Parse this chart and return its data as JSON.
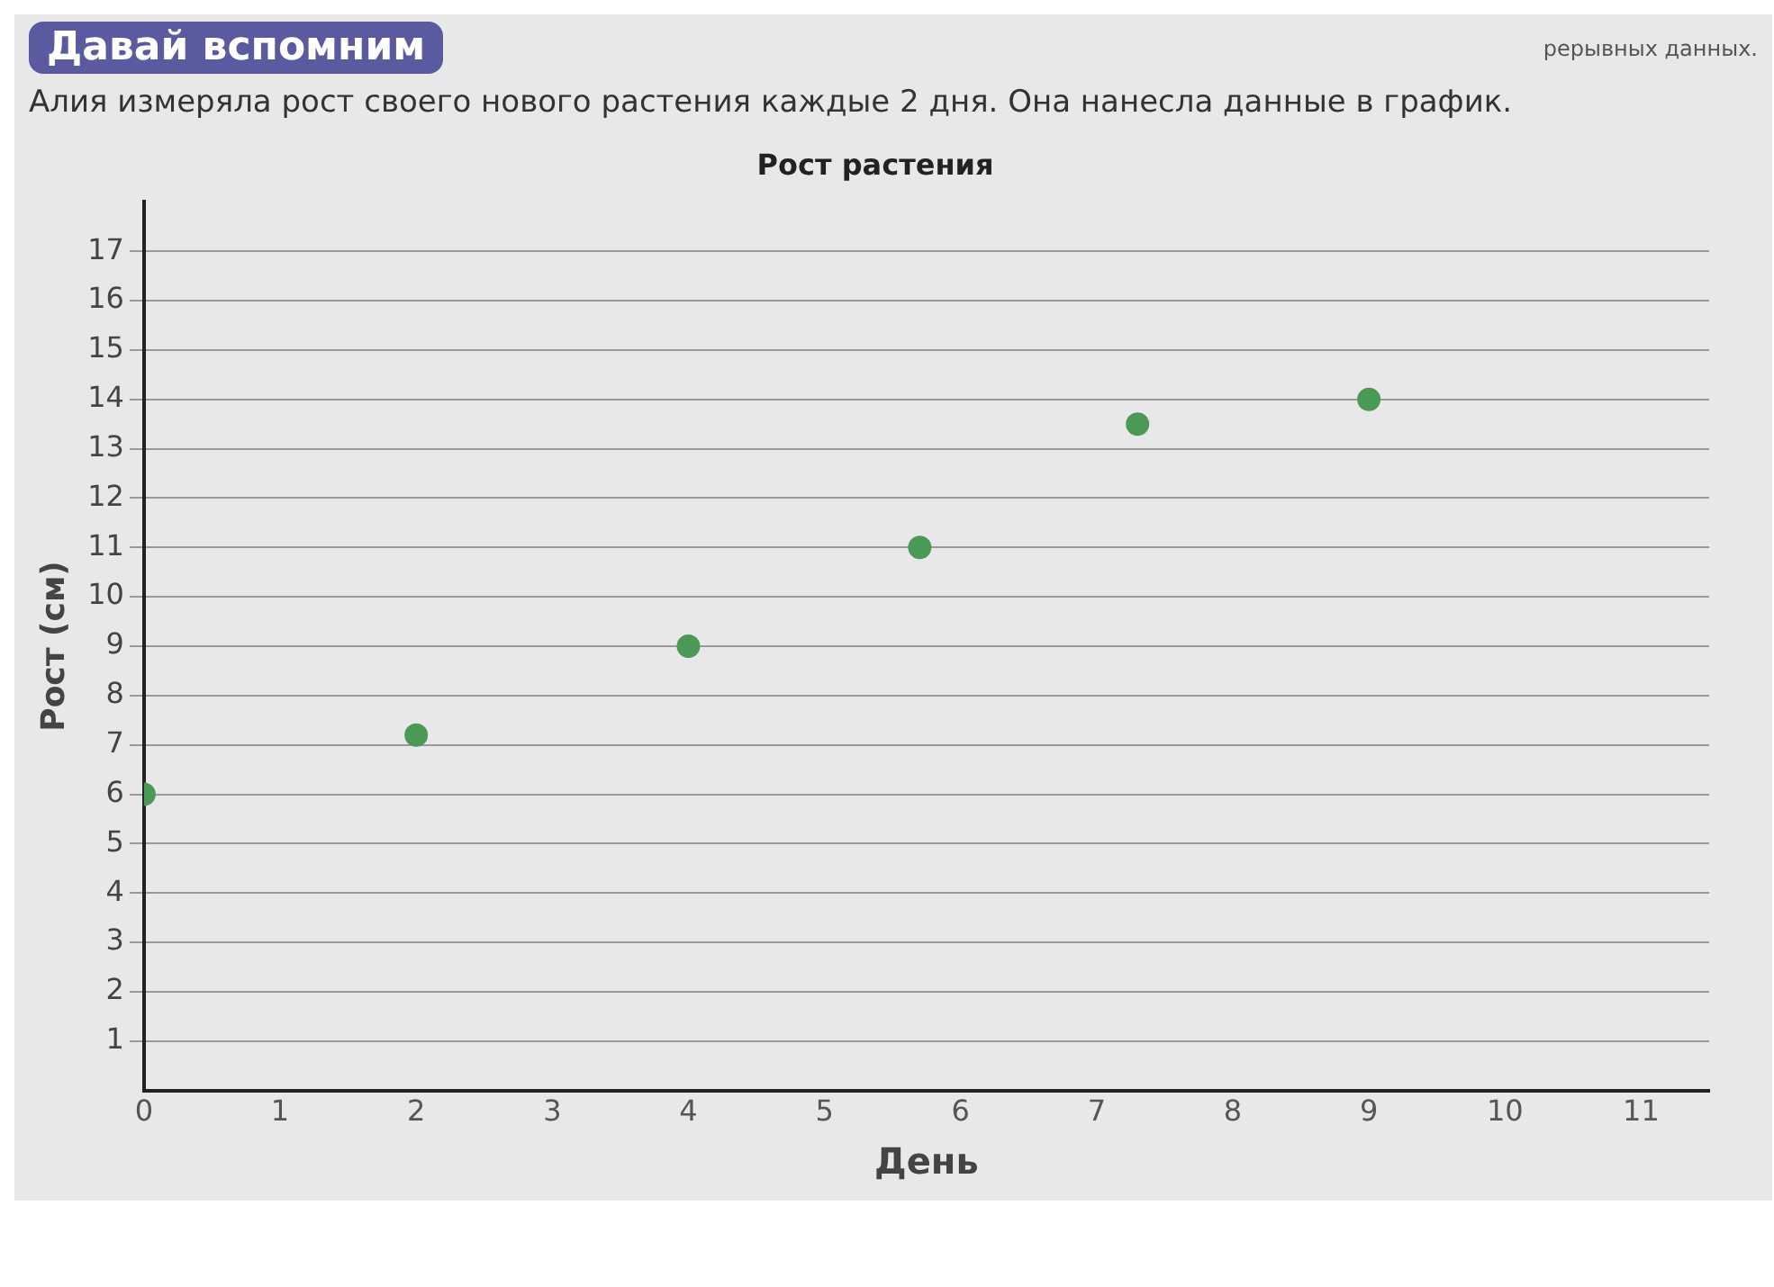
{
  "chart_data": {
    "type": "scatter",
    "title": "Рост растения",
    "xlabel": "День",
    "ylabel": "Рост (см)",
    "annotations": [
      "Давай вспомним",
      "Алия измеряла рост своего нового растения каждые 2 дня. Она нанесла данные в график.",
      "рерывных данных."
    ],
    "x": [
      0,
      2,
      4,
      5.7,
      7.3,
      9
    ],
    "series": [
      {
        "color": "#4a9a55",
        "values": [
          6,
          7.2,
          9,
          11,
          13.5,
          14
        ]
      }
    ],
    "xlim": [
      0,
      11.5
    ],
    "xticks": [
      0,
      1,
      2,
      3,
      4,
      5,
      6,
      7,
      8,
      9,
      10,
      11
    ],
    "ylim": [
      0,
      18
    ],
    "yticks": [
      1,
      2,
      3,
      4,
      5,
      6,
      7,
      8,
      9,
      10,
      11,
      12,
      13,
      14,
      15,
      16,
      17
    ],
    "grid": "y",
    "marker": "circle",
    "legend": false
  }
}
